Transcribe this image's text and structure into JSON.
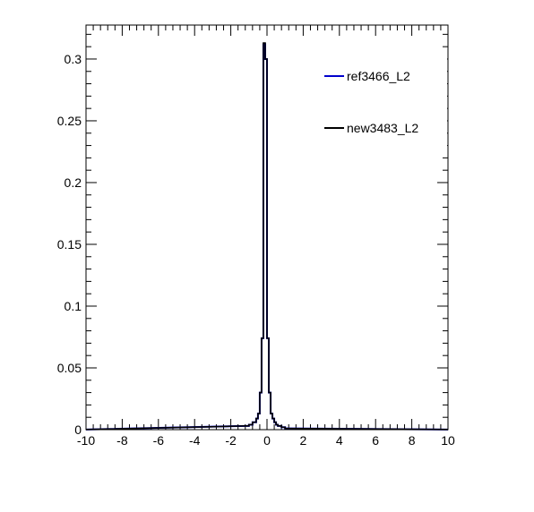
{
  "chart_data": {
    "type": "histogram",
    "title": "",
    "xlabel": "",
    "ylabel": "",
    "xlim": [
      -10,
      10
    ],
    "ylim": [
      0,
      0.3275
    ],
    "x_ticks": [
      -10,
      -8,
      -6,
      -4,
      -2,
      0,
      2,
      4,
      6,
      8,
      10
    ],
    "x_tick_labels": [
      "-10",
      "-8",
      "-6",
      "-4",
      "-2",
      "0",
      "2",
      "4",
      "6",
      "8",
      "10"
    ],
    "y_ticks": [
      0,
      0.05,
      0.1,
      0.15,
      0.2,
      0.25,
      0.3
    ],
    "y_tick_labels": [
      "0",
      "0.05",
      "0.1",
      "0.15",
      "0.2",
      "0.25",
      "0.3"
    ],
    "grid": false,
    "legend_position": "top-right",
    "bins": [
      -1.2,
      -1.0,
      -0.8,
      -0.6,
      -0.5,
      -0.4,
      -0.3,
      -0.2,
      -0.1,
      0.0,
      0.1,
      0.2,
      0.3,
      0.4,
      0.5,
      0.6,
      0.8,
      1.0,
      1.2
    ],
    "series": [
      {
        "name": "ref3466_L2",
        "color": "#0000cc",
        "values": [
          0.003,
          0.004,
          0.006,
          0.009,
          0.013,
          0.03,
          0.074,
          0.312,
          0.3,
          0.074,
          0.03,
          0.013,
          0.009,
          0.006,
          0.004,
          0.003,
          0.002,
          0.001
        ]
      },
      {
        "name": "new3483_L2",
        "color": "#000000",
        "values": [
          0.003,
          0.004,
          0.006,
          0.009,
          0.013,
          0.03,
          0.074,
          0.313,
          0.3,
          0.074,
          0.03,
          0.013,
          0.009,
          0.006,
          0.004,
          0.003,
          0.002,
          0.001
        ]
      }
    ],
    "tails": {
      "left": {
        "x_start": -10,
        "x_end": -1.2,
        "y_start": 0.0001,
        "y_end": 0.003
      },
      "right": {
        "x_start": 1.2,
        "x_end": 10,
        "y_start": 0.001,
        "y_end": 0.0001
      }
    }
  }
}
